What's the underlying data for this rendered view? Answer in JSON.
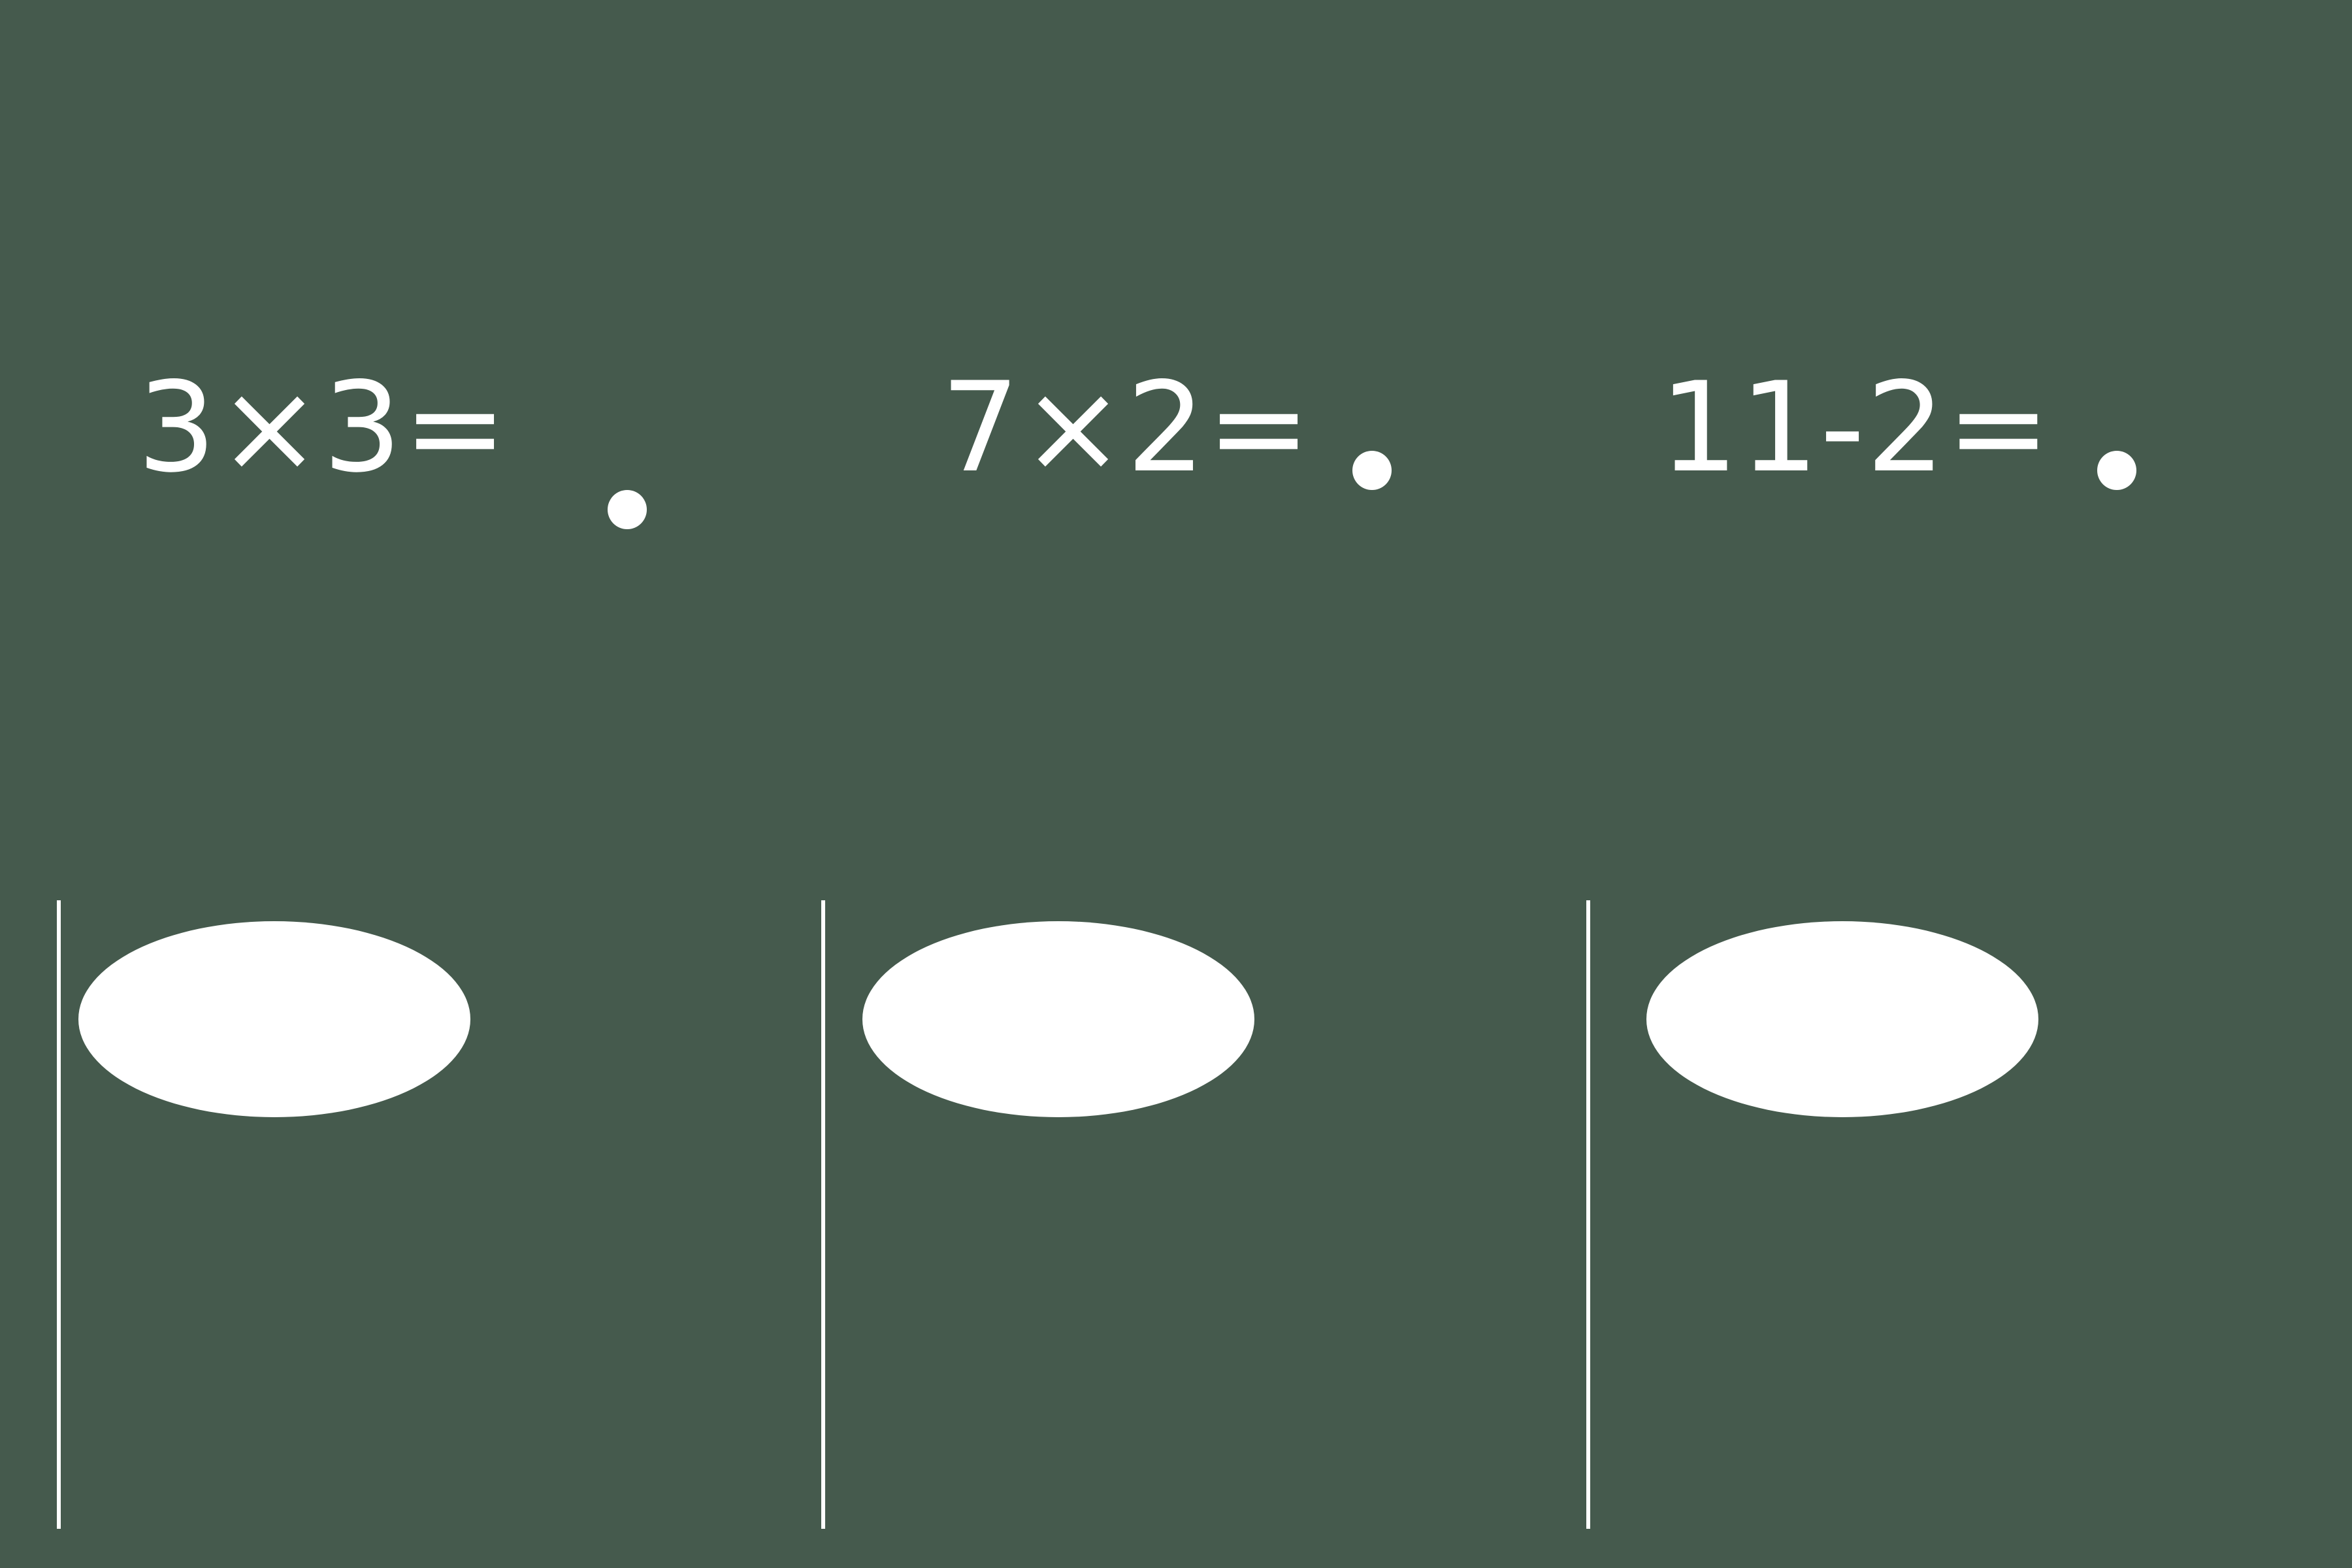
{
  "background_color": "#455a4d",
  "foreground_color": "#ffffff",
  "problems": [
    {
      "expression": "3×3=",
      "answer": ""
    },
    {
      "expression": "7×2=",
      "answer": ""
    },
    {
      "expression": "11-2=",
      "answer": ""
    }
  ],
  "answer_slots": [
    {
      "label": ""
    },
    {
      "label": ""
    },
    {
      "label": ""
    }
  ]
}
